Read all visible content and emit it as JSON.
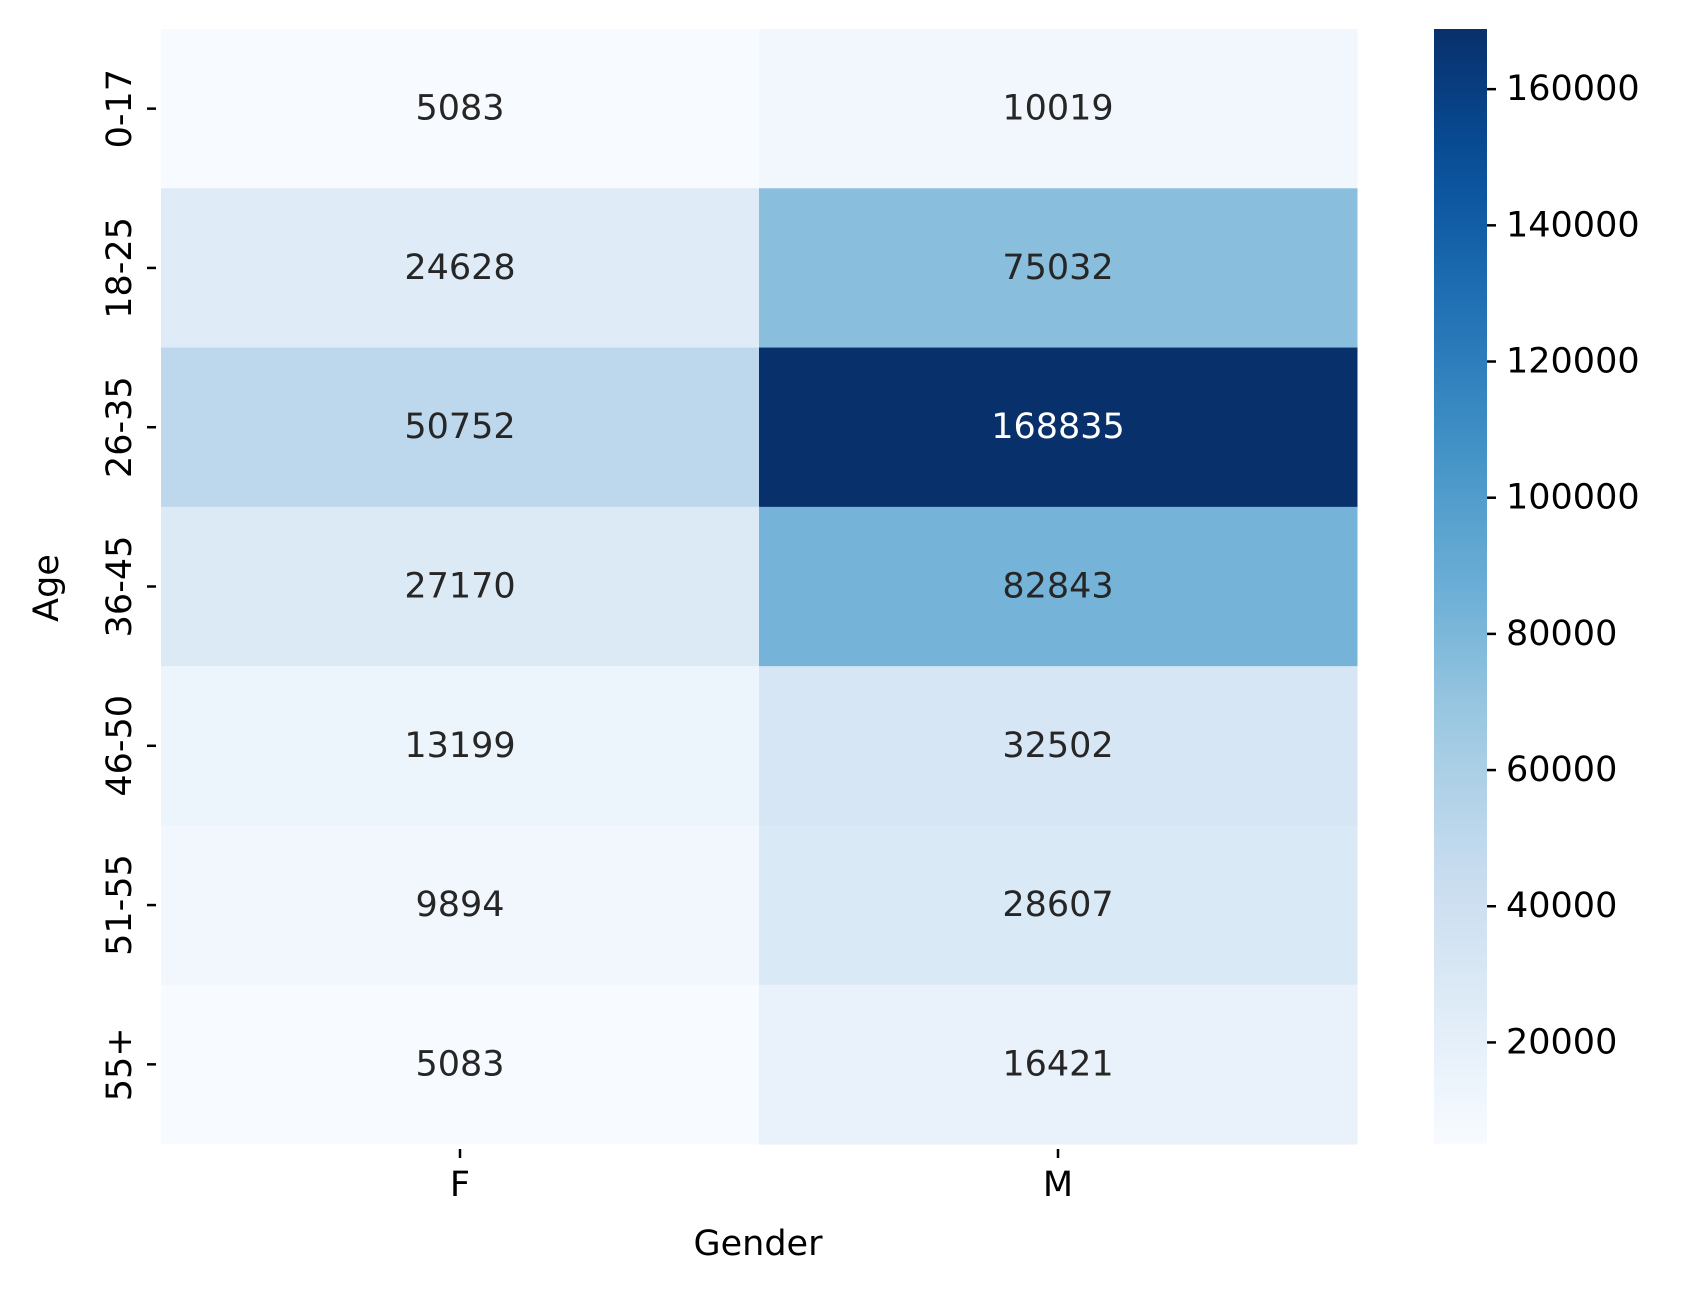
{
  "chart_data": {
    "type": "heatmap",
    "xlabel": "Gender",
    "ylabel": "Age",
    "x_categories": [
      "F",
      "M"
    ],
    "y_categories": [
      "0-17",
      "18-25",
      "26-35",
      "36-45",
      "46-50",
      "51-55",
      "55+"
    ],
    "values": [
      [
        5083,
        10019
      ],
      [
        24628,
        75032
      ],
      [
        50752,
        168835
      ],
      [
        27170,
        82843
      ],
      [
        13199,
        32502
      ],
      [
        9894,
        28607
      ],
      [
        5083,
        16421
      ]
    ],
    "color_range": [
      5083,
      168835
    ],
    "colormap": "Blues",
    "colorbar_ticks": [
      20000,
      40000,
      60000,
      80000,
      100000,
      120000,
      140000,
      160000
    ],
    "annotations": true
  }
}
